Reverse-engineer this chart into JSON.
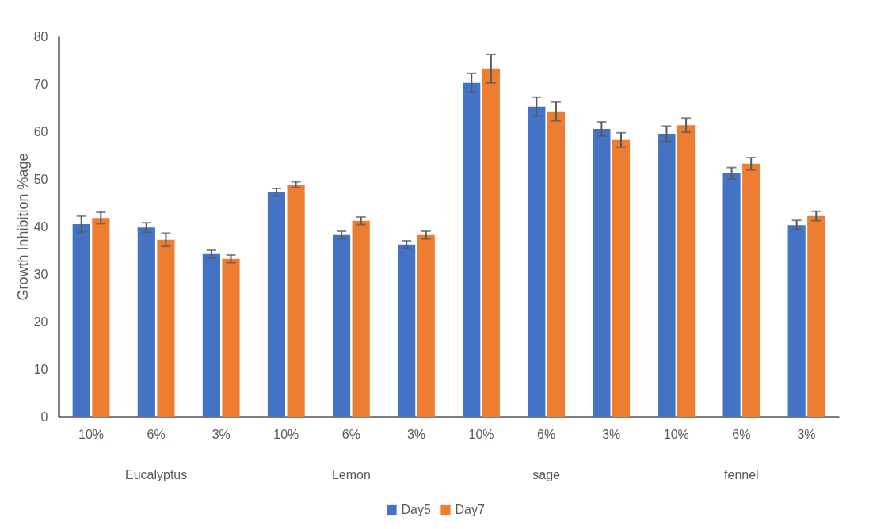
{
  "chart_data": {
    "type": "bar",
    "ylabel": "Growth Inhibition %age",
    "categories": [
      "10%",
      "6%",
      "3%",
      "10%",
      "6%",
      "3%",
      "10%",
      "6%",
      "3%",
      "10%",
      "6%",
      "3%"
    ],
    "annotations": [
      "Eucalyptus",
      "Lemon",
      "sage",
      "fennel"
    ],
    "series": [
      {
        "name": "Day5",
        "color": "#4472c4",
        "values": [
          40.5,
          39.8,
          34.2,
          47.2,
          38.2,
          36.2,
          70.2,
          65.2,
          60.5,
          59.5,
          51.2,
          40.3
        ],
        "errors": [
          1.7,
          1,
          0.8,
          0.8,
          0.8,
          0.8,
          2,
          2,
          1.5,
          1.6,
          1.2,
          1
        ]
      },
      {
        "name": "Day7",
        "color": "#ed7d31",
        "values": [
          41.8,
          37.2,
          33.2,
          48.8,
          41.2,
          38.2,
          73.2,
          64.2,
          58.2,
          61.3,
          53.2,
          42.2
        ],
        "errors": [
          1.2,
          1.4,
          0.8,
          0.6,
          0.8,
          0.8,
          3,
          2,
          1.5,
          1.5,
          1.3,
          1
        ]
      }
    ],
    "ylim": [
      0,
      80
    ],
    "yticks": [
      0,
      10,
      20,
      30,
      40,
      50,
      60,
      70,
      80
    ],
    "grid": false,
    "legend": "bottom"
  }
}
